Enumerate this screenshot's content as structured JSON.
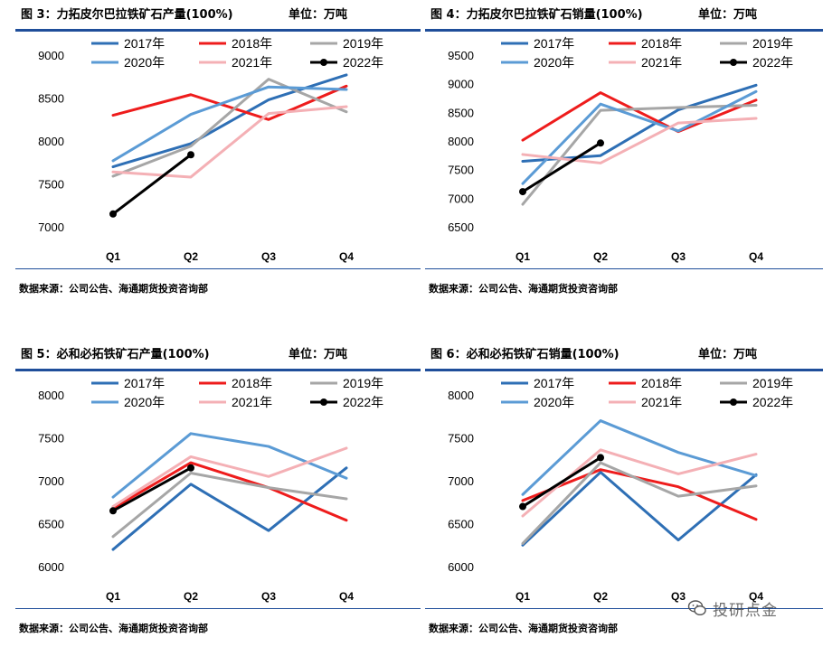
{
  "panels": [
    {
      "title": "图 3：力拓皮尔巴拉铁矿石产量(100%)",
      "unit": "单位：万吨",
      "source": "数据来源：公司公告、海通期货投资咨询部"
    },
    {
      "title": "图 4：力拓皮尔巴拉铁矿石销量(100%)",
      "unit": "单位：万吨",
      "source": "数据来源：公司公告、海通期货投资咨询部"
    },
    {
      "title": "图 5：必和必拓铁矿石产量(100%)",
      "unit": "单位：万吨",
      "source": "数据来源：公司公告、海通期货投资咨询部"
    },
    {
      "title": "图 6：必和必拓铁矿石销量(100%)",
      "unit": "单位：万吨",
      "source": "数据来源：公司公告、海通期货投资咨询部"
    }
  ],
  "watermark": {
    "text": "投研点金",
    "icon": "wechat-icon"
  },
  "series_colors": {
    "2017年": "#2e6fb5",
    "2018年": "#ee1c1c",
    "2019年": "#a6a6a6",
    "2020年": "#5b9bd5",
    "2021年": "#f4b0b5",
    "2022年": "#000000"
  },
  "chart_data": [
    {
      "type": "line",
      "categories": [
        "Q1",
        "Q2",
        "Q3",
        "Q4"
      ],
      "ylim": [
        7000,
        9000
      ],
      "yticks": [
        7000,
        7500,
        8000,
        8500,
        9000
      ],
      "legend_position": "top",
      "grid": false,
      "series": [
        {
          "name": "2017年",
          "values": [
            7710,
            7980,
            8490,
            8780
          ]
        },
        {
          "name": "2018年",
          "values": [
            8310,
            8550,
            8260,
            8650
          ]
        },
        {
          "name": "2019年",
          "values": [
            7600,
            7950,
            8730,
            8350
          ]
        },
        {
          "name": "2020年",
          "values": [
            7780,
            8320,
            8640,
            8610
          ]
        },
        {
          "name": "2021年",
          "values": [
            7650,
            7590,
            8330,
            8410
          ]
        },
        {
          "name": "2022年",
          "values": [
            7160,
            7850,
            null,
            null
          ]
        }
      ]
    },
    {
      "type": "line",
      "categories": [
        "Q1",
        "Q2",
        "Q3",
        "Q4"
      ],
      "ylim": [
        6500,
        9500
      ],
      "yticks": [
        6500,
        7000,
        7500,
        8000,
        8500,
        9000,
        9500
      ],
      "legend_position": "top",
      "grid": false,
      "series": [
        {
          "name": "2017年",
          "values": [
            7660,
            7760,
            8560,
            8990
          ]
        },
        {
          "name": "2018年",
          "values": [
            8030,
            8860,
            8180,
            8730
          ]
        },
        {
          "name": "2019年",
          "values": [
            6910,
            8550,
            8600,
            8640
          ]
        },
        {
          "name": "2020年",
          "values": [
            7270,
            8660,
            8190,
            8880
          ]
        },
        {
          "name": "2021年",
          "values": [
            7780,
            7630,
            8330,
            8410
          ]
        },
        {
          "name": "2022年",
          "values": [
            7130,
            7980,
            null,
            null
          ]
        }
      ]
    },
    {
      "type": "line",
      "categories": [
        "Q1",
        "Q2",
        "Q3",
        "Q4"
      ],
      "ylim": [
        6000,
        8000
      ],
      "yticks": [
        6000,
        6500,
        7000,
        7500,
        8000
      ],
      "legend_position": "top",
      "grid": false,
      "series": [
        {
          "name": "2017年",
          "values": [
            6210,
            6970,
            6430,
            7160
          ]
        },
        {
          "name": "2018年",
          "values": [
            6690,
            7220,
            6930,
            6550
          ]
        },
        {
          "name": "2019年",
          "values": [
            6360,
            7100,
            6930,
            6800
          ]
        },
        {
          "name": "2020年",
          "values": [
            6820,
            7560,
            7410,
            7040
          ]
        },
        {
          "name": "2021年",
          "values": [
            6710,
            7290,
            7060,
            7390
          ]
        },
        {
          "name": "2022年",
          "values": [
            6660,
            7160,
            null,
            null
          ]
        }
      ]
    },
    {
      "type": "line",
      "categories": [
        "Q1",
        "Q2",
        "Q3",
        "Q4"
      ],
      "ylim": [
        6000,
        8000
      ],
      "yticks": [
        6000,
        6500,
        7000,
        7500,
        8000
      ],
      "legend_position": "top",
      "grid": false,
      "series": [
        {
          "name": "2017年",
          "values": [
            6260,
            7110,
            6320,
            7080
          ]
        },
        {
          "name": "2018年",
          "values": [
            6780,
            7140,
            6940,
            6560
          ]
        },
        {
          "name": "2019年",
          "values": [
            6280,
            7220,
            6830,
            6950
          ]
        },
        {
          "name": "2020年",
          "values": [
            6850,
            7710,
            7340,
            7070
          ]
        },
        {
          "name": "2021年",
          "values": [
            6600,
            7370,
            7090,
            7320
          ]
        },
        {
          "name": "2022年",
          "values": [
            6710,
            7280,
            null,
            null
          ]
        }
      ]
    }
  ]
}
